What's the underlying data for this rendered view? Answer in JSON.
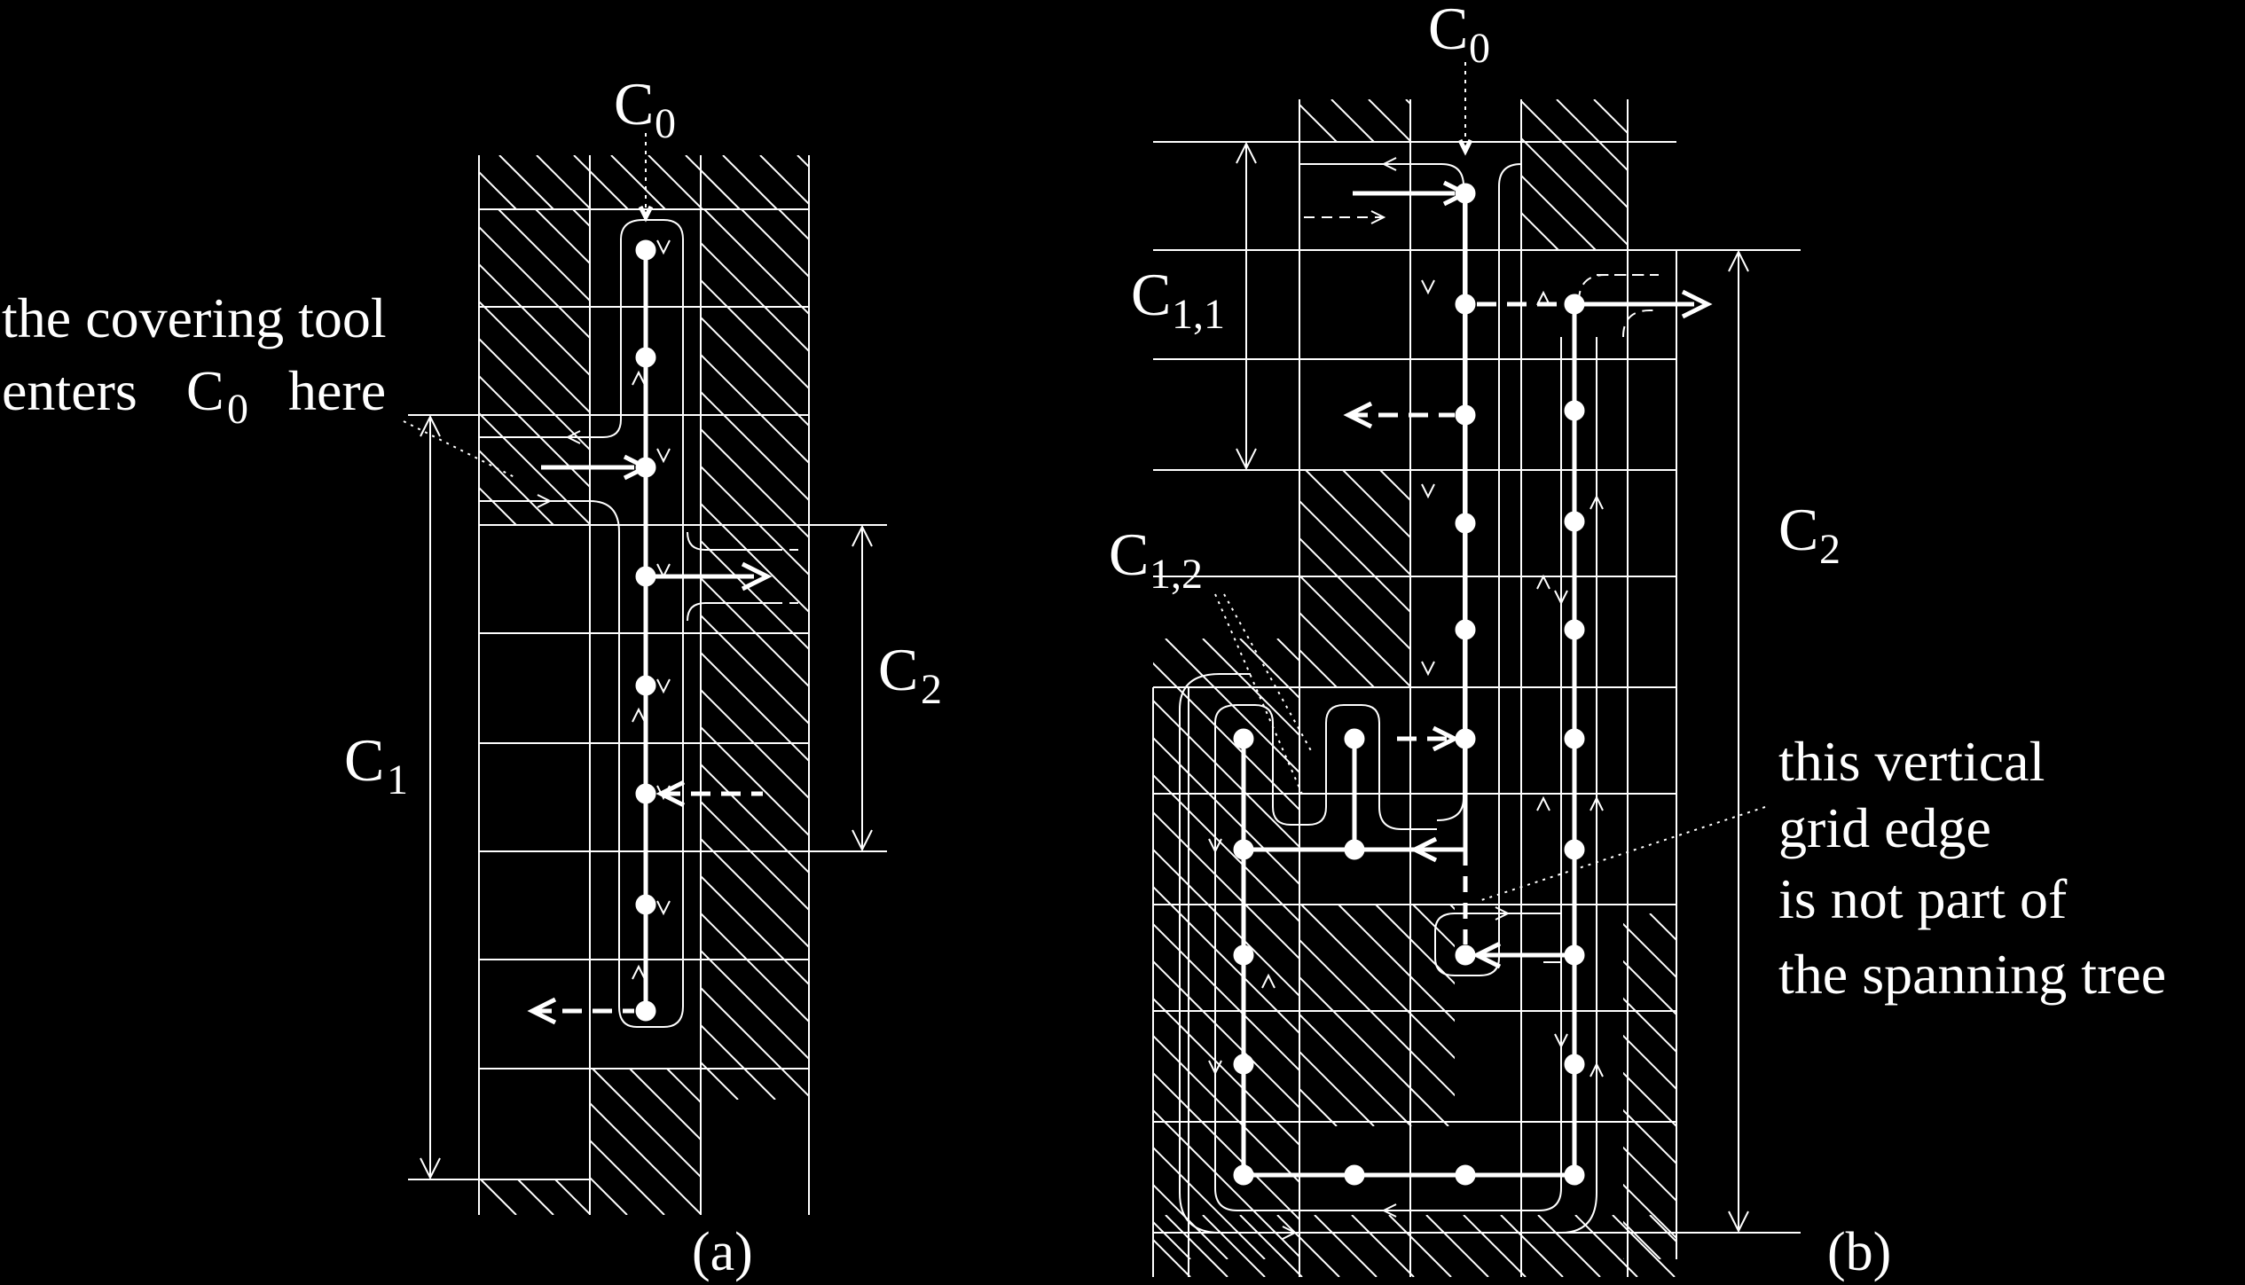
{
  "panel_a": {
    "label_c0": "C",
    "label_c0_sub": "0",
    "label_c1": "C",
    "label_c1_sub": "1",
    "label_c2": "C",
    "label_c2_sub": "2",
    "caption": "(a)",
    "note_line1": "the covering tool",
    "note_line2_pre": "enters",
    "note_line2_sym": "C",
    "note_line2_sub": "0",
    "note_line2_post": "here"
  },
  "panel_b": {
    "label_c0": "C",
    "label_c0_sub": "0",
    "label_c11": "C",
    "label_c11_sub": "1,1",
    "label_c12": "C",
    "label_c12_sub": "1,2",
    "label_c2": "C",
    "label_c2_sub": "2",
    "caption": "(b)",
    "note_line1": "this vertical",
    "note_line2": "grid edge",
    "note_line3": "is not part of",
    "note_line4": "the spanning tree"
  },
  "colors": {
    "background": "#000000",
    "foreground": "#ffffff"
  }
}
